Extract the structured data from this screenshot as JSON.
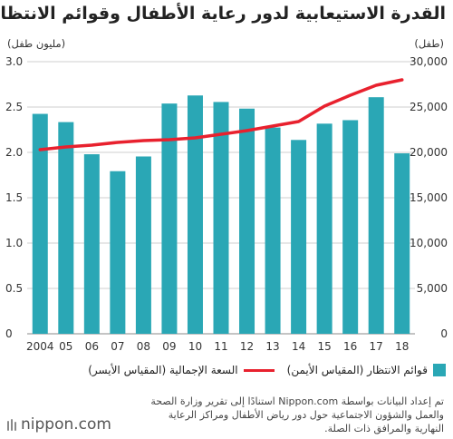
{
  "title": "القدرة الاستيعابية لدور رعاية الأطفال وقوائم الانتظار",
  "units": {
    "left": "(مليون طفل)",
    "right": "(طفل)"
  },
  "legend": {
    "bars": "قوائم الانتظار (المقياس الأيمن)",
    "line": "السعة الإجمالية (المقياس الأيسر)"
  },
  "source": "تم إعداد البيانات بواسطة Nippon.com استنادًا إلى تقرير وزارة الصحة والعمل والشؤون الاجتماعية حول دور رياض الأطفال ومراكز الرعاية النهارية والمرافق ذات الصلة.",
  "logo": "nippon.com",
  "colors": {
    "bars": "#2aa7b5",
    "line": "#e8212e"
  },
  "chart_data": {
    "type": "bar",
    "categories": [
      "2004",
      "05",
      "06",
      "07",
      "08",
      "09",
      "10",
      "11",
      "12",
      "13",
      "14",
      "15",
      "16",
      "17",
      "18"
    ],
    "series": [
      {
        "name": "قوائم الانتظار (المقياس الأيمن)",
        "type": "bar",
        "axis": "right",
        "values": [
          24245,
          23338,
          19794,
          17926,
          19550,
          25384,
          26275,
          25556,
          24825,
          22741,
          21371,
          23167,
          23553,
          26081,
          19895
        ]
      },
      {
        "name": "السعة الإجمالية (المقياس الأيسر)",
        "type": "line",
        "axis": "left",
        "values": [
          2.03,
          2.06,
          2.08,
          2.11,
          2.13,
          2.14,
          2.16,
          2.2,
          2.24,
          2.29,
          2.34,
          2.51,
          2.63,
          2.74,
          2.8
        ]
      }
    ],
    "y_left": {
      "label": "(مليون طفل)",
      "ylim": [
        0,
        3.0
      ],
      "ticks": [
        "0",
        "0.5",
        "1.0",
        "1.5",
        "2.0",
        "2.5",
        "3.0"
      ]
    },
    "y_right": {
      "label": "(طفل)",
      "ylim": [
        0,
        30000
      ],
      "ticks": [
        "0",
        "5,000",
        "10,000",
        "15,000",
        "20,000",
        "25,000",
        "30,000"
      ]
    },
    "grid": true,
    "legend_position": "bottom"
  }
}
